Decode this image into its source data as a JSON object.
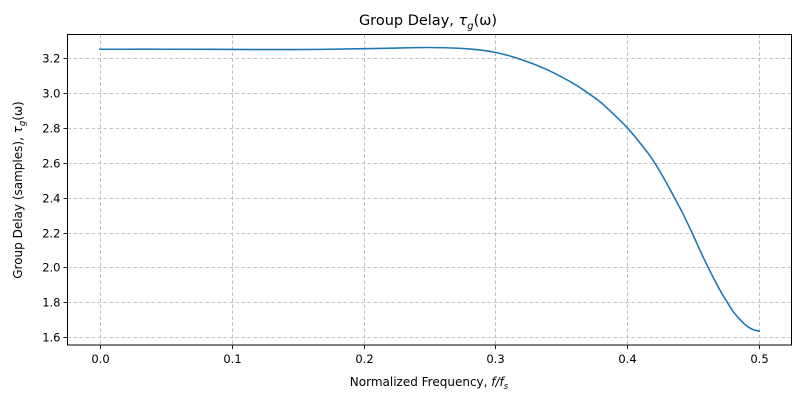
{
  "chart_data": {
    "type": "line",
    "title": "Group Delay, τ_g(ω)",
    "title_main": "Group Delay, ",
    "title_sym": "τ",
    "title_sub": "g",
    "title_arg": "(ω)",
    "xlabel": "Normalized Frequency, f/f_s",
    "xlabel_main": "Normalized Frequency, ",
    "xlabel_sym": "f/f",
    "xlabel_sub": "s",
    "ylabel": "Group Delay (samples), τ_g(ω)",
    "ylabel_main": "Group Delay (samples), ",
    "ylabel_sym": "τ",
    "ylabel_sub": "g",
    "ylabel_arg": "(ω)",
    "xlim": [
      -0.0245,
      0.5245
    ],
    "ylim": [
      1.5555,
      3.3345
    ],
    "xticks": [
      0.0,
      0.1,
      0.2,
      0.3,
      0.4,
      0.5
    ],
    "xtick_labels": [
      "0.0",
      "0.1",
      "0.2",
      "0.3",
      "0.4",
      "0.5"
    ],
    "yticks": [
      1.6,
      1.8,
      2.0,
      2.2,
      2.4,
      2.6,
      2.8,
      3.0,
      3.2
    ],
    "ytick_labels": [
      "1.6",
      "1.8",
      "2.0",
      "2.2",
      "2.4",
      "2.6",
      "2.8",
      "3.0",
      "3.2"
    ],
    "grid": true,
    "legend": null,
    "series": [
      {
        "name": "group delay",
        "color": "#1f77b4",
        "x": [
          0.0,
          0.05,
          0.1,
          0.15,
          0.2,
          0.22,
          0.25,
          0.28,
          0.3,
          0.32,
          0.34,
          0.36,
          0.37,
          0.38,
          0.39,
          0.4,
          0.41,
          0.419,
          0.427,
          0.435,
          0.442,
          0.449,
          0.455,
          0.46,
          0.466,
          0.471,
          0.475,
          0.48,
          0.485,
          0.49,
          0.495,
          0.5
        ],
        "y": [
          3.25,
          3.25,
          3.249,
          3.248,
          3.253,
          3.256,
          3.26,
          3.252,
          3.232,
          3.19,
          3.13,
          3.05,
          3.0,
          2.945,
          2.875,
          2.8,
          2.71,
          2.62,
          2.52,
          2.41,
          2.31,
          2.2,
          2.1,
          2.02,
          1.93,
          1.86,
          1.81,
          1.75,
          1.705,
          1.668,
          1.645,
          1.635
        ]
      }
    ]
  },
  "colors": {
    "line": "#1f77b4",
    "grid": "#b0b0b0",
    "axes": "#000000",
    "background": "#ffffff"
  }
}
